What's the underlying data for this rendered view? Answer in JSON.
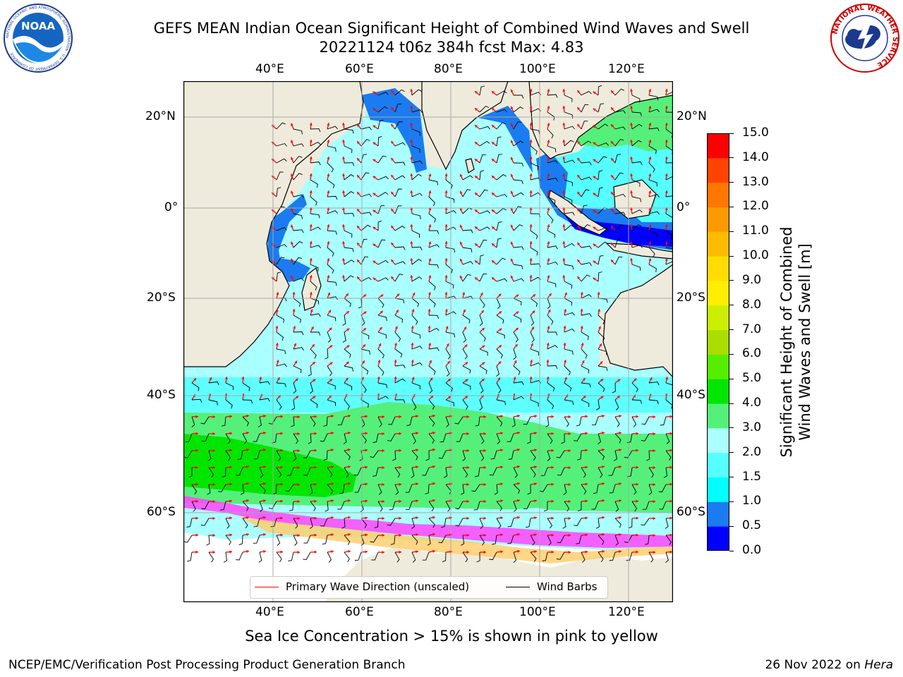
{
  "title": {
    "line1": "GEFS MEAN Indian Ocean Significant Height of Combined Wind Waves and Swell",
    "line2": "20221124 t06z 384h fcst   Max: 4.83"
  },
  "logos": {
    "noaa": {
      "text": "NOAA",
      "ring_text": "NATIONAL OCEANIC AND ATMOSPHERIC ADMINISTRATION · U.S. DEPARTMENT OF COMMERCE"
    },
    "nws": {
      "ring_text": "NATIONAL WEATHER SERVICE"
    }
  },
  "map": {
    "lon_ticks": [
      "40°E",
      "60°E",
      "80°E",
      "100°E",
      "120°E"
    ],
    "lat_ticks": [
      "20°N",
      "0°",
      "20°S",
      "40°S",
      "60°S"
    ],
    "extent": {
      "lon": [
        20,
        130
      ],
      "lat": [
        -75,
        27
      ]
    },
    "projection": "Mercator",
    "grid": true,
    "land_color": "#efebdc",
    "ice_note_colors": [
      "#ff44ff",
      "#ff9977",
      "#ffcc66"
    ]
  },
  "colorbar": {
    "label_line1": "Significant Height of Combined",
    "label_line2": "Wind Waves and Swell [m]",
    "ticks": [
      "0.0",
      "0.5",
      "1.0",
      "1.5",
      "2.0",
      "3.0",
      "4.0",
      "5.0",
      "6.0",
      "7.0",
      "8.0",
      "9.0",
      "10.0",
      "11.0",
      "12.0",
      "13.0",
      "14.0",
      "15.0"
    ],
    "colors": [
      "#0000ff",
      "#1a7cf0",
      "#00ffff",
      "#55ffff",
      "#aaffff",
      "#55f07a",
      "#00e600",
      "#55ee00",
      "#aadd00",
      "#ccee00",
      "#ffee00",
      "#ffdd00",
      "#ffbb00",
      "#ff9900",
      "#ff7700",
      "#ff4400",
      "#ff0000"
    ]
  },
  "legend": {
    "wave_label": "Primary Wave Direction (unscaled)",
    "wave_color": "#ff0000",
    "wind_label": "Wind Barbs",
    "wind_color": "#000000"
  },
  "ice_caption": "Sea Ice Concentration > 15% is shown in pink to yellow",
  "footer": {
    "left": "NCEP/EMC/Verification Post Processing Product Generation Branch",
    "right_date": "26 Nov 2022 on ",
    "right_host": "Hera"
  }
}
